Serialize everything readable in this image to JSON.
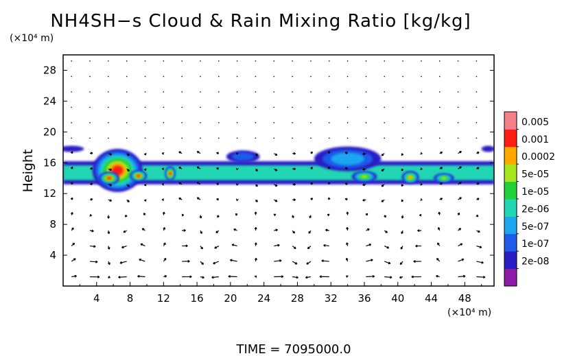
{
  "chart_data": {
    "type": "heatmap",
    "title": "NH4SH−s Cloud & Rain Mixing Ratio [kg/kg]",
    "ylabel": "Height",
    "y_scale_label": "(×10⁴ m)",
    "x_scale_label": "(×10⁴ m)",
    "xlim": [
      0,
      51.5
    ],
    "ylim": [
      0,
      30
    ],
    "x_ticks": [
      "4",
      "8",
      "12",
      "16",
      "20",
      "24",
      "28",
      "32",
      "36",
      "40",
      "44",
      "48"
    ],
    "y_ticks": [
      "4",
      "8",
      "12",
      "16",
      "20",
      "24",
      "28"
    ],
    "x_tick_values": [
      4,
      8,
      12,
      16,
      20,
      24,
      28,
      32,
      36,
      40,
      44,
      48
    ],
    "y_tick_values": [
      4,
      8,
      12,
      16,
      20,
      24,
      28
    ],
    "legend_position": "right",
    "colorbar": {
      "labels": [
        "0.005",
        "0.001",
        "0.0002",
        "5e-05",
        "1e-05",
        "2e-06",
        "5e-07",
        "1e-07",
        "2e-08"
      ],
      "colors": [
        "#8e1aa6",
        "#2b1cc4",
        "#1f5ae8",
        "#1fa6f0",
        "#22d6b4",
        "#1fd038",
        "#a6e61e",
        "#ffa800",
        "#ff1e14",
        "#f57f8a"
      ]
    },
    "field": {
      "description": "layer of mixing ratio between ~13 and ~18 (x10^4 m) height",
      "layer_bottom": 13.2,
      "layer_top": 16.2,
      "blobs": [
        {
          "x": 6.5,
          "y": 15.0,
          "rx": 3.0,
          "ry": 2.8,
          "level": 8
        },
        {
          "x": 5.5,
          "y": 14.0,
          "rx": 1.2,
          "ry": 0.8,
          "level": 8
        },
        {
          "x": 9.0,
          "y": 14.3,
          "rx": 1.0,
          "ry": 0.7,
          "level": 8
        },
        {
          "x": 12.8,
          "y": 14.6,
          "rx": 0.6,
          "ry": 0.9,
          "level": 8
        },
        {
          "x": 21.5,
          "y": 16.8,
          "rx": 2.0,
          "ry": 0.8,
          "level": 2
        },
        {
          "x": 34.0,
          "y": 16.5,
          "rx": 4.0,
          "ry": 1.6,
          "level": 3
        },
        {
          "x": 36.0,
          "y": 14.2,
          "rx": 1.5,
          "ry": 0.7,
          "level": 6
        },
        {
          "x": 41.5,
          "y": 14.1,
          "rx": 1.0,
          "ry": 0.8,
          "level": 7
        },
        {
          "x": 45.5,
          "y": 14.0,
          "rx": 1.2,
          "ry": 0.6,
          "level": 6
        },
        {
          "x": 1.0,
          "y": 17.8,
          "rx": 1.5,
          "ry": 0.4,
          "level": 1
        },
        {
          "x": 50.8,
          "y": 17.8,
          "rx": 0.8,
          "ry": 0.4,
          "level": 1
        }
      ]
    },
    "footer": "TIME  =  7095000.0"
  }
}
